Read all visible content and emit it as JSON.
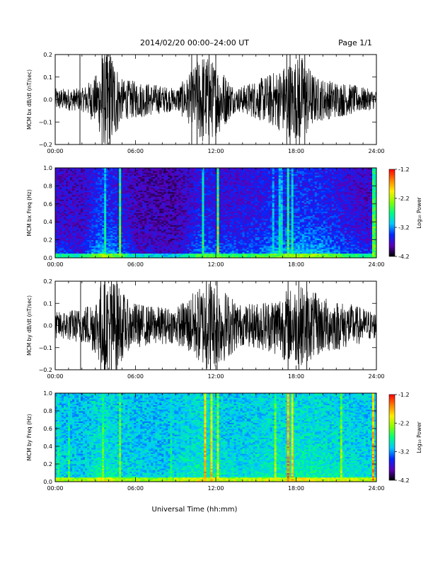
{
  "header": {
    "title": "2014/02/20  00:00–24:00 UT",
    "page": "Page 1/1"
  },
  "xlabel": "Universal Time (hh:mm)",
  "chart_data": [
    {
      "type": "line",
      "ylabel": "MCM bx dB/dt (nT/sec)",
      "xlim": [
        0,
        24
      ],
      "ylim": [
        -0.2,
        0.2
      ],
      "x_tick_labels": [
        "00:00",
        "06:00",
        "12:00",
        "18:00",
        "24:00"
      ],
      "y_tick_labels": [
        "0.2",
        "0.1",
        "0.0",
        "−0.1",
        "−0.2"
      ],
      "series_color": "#000000",
      "amplitude_envelope": [
        {
          "x": 0,
          "amp": 0.05
        },
        {
          "x": 2,
          "amp": 0.05
        },
        {
          "x": 3.2,
          "amp": 0.12
        },
        {
          "x": 3.5,
          "amp": 0.21
        },
        {
          "x": 4.3,
          "amp": 0.21
        },
        {
          "x": 5,
          "amp": 0.09
        },
        {
          "x": 6.5,
          "amp": 0.08
        },
        {
          "x": 9,
          "amp": 0.05
        },
        {
          "x": 10,
          "amp": 0.11
        },
        {
          "x": 11,
          "amp": 0.21
        },
        {
          "x": 12.3,
          "amp": 0.15
        },
        {
          "x": 13.5,
          "amp": 0.05
        },
        {
          "x": 15.5,
          "amp": 0.1
        },
        {
          "x": 16.5,
          "amp": 0.13
        },
        {
          "x": 17.5,
          "amp": 0.17
        },
        {
          "x": 18.4,
          "amp": 0.2
        },
        {
          "x": 19.5,
          "amp": 0.1
        },
        {
          "x": 22,
          "amp": 0.07
        },
        {
          "x": 24,
          "amp": 0.04
        }
      ],
      "full_scale_spikes": [
        1.85,
        3.5,
        3.9,
        4.1,
        10.2,
        10.6,
        11.5,
        12,
        17.3,
        17.55,
        18.25,
        18.65
      ]
    },
    {
      "type": "heatmap",
      "ylabel": "MCM bx Freq (Hz)",
      "xlim": [
        0,
        24
      ],
      "ylim": [
        0,
        1.0
      ],
      "x_tick_labels": [
        "00:00",
        "06:00",
        "12:00",
        "18:00",
        "24:00"
      ],
      "y_tick_labels": [
        "1.0",
        "0.8",
        "0.6",
        "0.4",
        "0.2",
        "0.0"
      ],
      "colorbar": {
        "label": "Log₁₀ Power",
        "range": [
          -4.2,
          -1.2
        ],
        "tick_labels": [
          "-1.2",
          "-2.2",
          "-3.2",
          "-4.2"
        ],
        "colors": [
          "#000000",
          "#5b00b8",
          "#0028ff",
          "#00c8ff",
          "#00ff80",
          "#88ff00",
          "#ffee00",
          "#ff8000",
          "#ff0000"
        ]
      },
      "background_log_power": -4.0,
      "activity": [
        {
          "x": 0,
          "lvl": -3.4
        },
        {
          "x": 2,
          "lvl": -3.5
        },
        {
          "x": 3.5,
          "lvl": -2.9
        },
        {
          "x": 4.5,
          "lvl": -3.1
        },
        {
          "x": 6,
          "lvl": -3.6
        },
        {
          "x": 9,
          "lvl": -3.7
        },
        {
          "x": 11,
          "lvl": -3.1
        },
        {
          "x": 12.5,
          "lvl": -3.3
        },
        {
          "x": 15,
          "lvl": -3.2
        },
        {
          "x": 17,
          "lvl": -3.0
        },
        {
          "x": 18.5,
          "lvl": -2.9
        },
        {
          "x": 20,
          "lvl": -3.0
        },
        {
          "x": 22,
          "lvl": -3.3
        },
        {
          "x": 24,
          "lvl": -3.5
        }
      ],
      "stripes": [
        {
          "x": 3.8,
          "log_power": -2.7
        },
        {
          "x": 4.9,
          "log_power": -2.4
        },
        {
          "x": 11.1,
          "log_power": -2.6
        },
        {
          "x": 12.15,
          "log_power": -2.3
        },
        {
          "x": 16.35,
          "log_power": -2.9
        },
        {
          "x": 16.85,
          "log_power": -2.8
        },
        {
          "x": 17.35,
          "log_power": -2.5
        },
        {
          "x": 17.7,
          "log_power": -2.7
        },
        {
          "x": 23.85,
          "log_power": -2.4
        }
      ]
    },
    {
      "type": "line",
      "ylabel": "MCM by dB/dt (nT/sec)",
      "xlim": [
        0,
        24
      ],
      "ylim": [
        -0.2,
        0.2
      ],
      "x_tick_labels": [
        "00:00",
        "06:00",
        "12:00",
        "18:00",
        "24:00"
      ],
      "y_tick_labels": [
        "0.2",
        "0.1",
        "0.0",
        "−0.1",
        "−0.2"
      ],
      "series_color": "#000000",
      "amplitude_envelope": [
        {
          "x": 0,
          "amp": 0.06
        },
        {
          "x": 2,
          "amp": 0.08
        },
        {
          "x": 3,
          "amp": 0.13
        },
        {
          "x": 3.5,
          "amp": 0.21
        },
        {
          "x": 4.5,
          "amp": 0.21
        },
        {
          "x": 5.5,
          "amp": 0.11
        },
        {
          "x": 7,
          "amp": 0.09
        },
        {
          "x": 9,
          "amp": 0.08
        },
        {
          "x": 10.5,
          "amp": 0.16
        },
        {
          "x": 11.5,
          "amp": 0.21
        },
        {
          "x": 12.5,
          "amp": 0.17
        },
        {
          "x": 14,
          "amp": 0.09
        },
        {
          "x": 16,
          "amp": 0.12
        },
        {
          "x": 17.5,
          "amp": 0.17
        },
        {
          "x": 18.5,
          "amp": 0.18
        },
        {
          "x": 20,
          "amp": 0.13
        },
        {
          "x": 22,
          "amp": 0.1
        },
        {
          "x": 24,
          "amp": 0.06
        }
      ],
      "full_scale_spikes": [
        1.9,
        3.4,
        3.7,
        4.2,
        4.6,
        11.3,
        11.6,
        12.1,
        17.4,
        18.2,
        18.8
      ]
    },
    {
      "type": "heatmap",
      "ylabel": "MCM by Freq (Hz)",
      "xlim": [
        0,
        24
      ],
      "ylim": [
        0,
        1.0
      ],
      "x_tick_labels": [
        "00:00",
        "06:00",
        "12:00",
        "18:00",
        "24:00"
      ],
      "y_tick_labels": [
        "1.0",
        "0.8",
        "0.6",
        "0.4",
        "0.2",
        "0.0"
      ],
      "colorbar": {
        "label": "Log₁₀ Power",
        "range": [
          -4.2,
          -1.2
        ],
        "tick_labels": [
          "-1.2",
          "-2.2",
          "-3.2",
          "-4.2"
        ],
        "colors": [
          "#000000",
          "#5b00b8",
          "#0028ff",
          "#00c8ff",
          "#00ff80",
          "#88ff00",
          "#ffee00",
          "#ff8000",
          "#ff0000"
        ]
      },
      "background_log_power": -3.15,
      "activity": [
        {
          "x": 0,
          "lvl": -2.9
        },
        {
          "x": 2,
          "lvl": -3.0
        },
        {
          "x": 3.5,
          "lvl": -2.7
        },
        {
          "x": 5,
          "lvl": -2.9
        },
        {
          "x": 8,
          "lvl": -3.0
        },
        {
          "x": 11,
          "lvl": -2.7
        },
        {
          "x": 13,
          "lvl": -2.9
        },
        {
          "x": 16,
          "lvl": -2.8
        },
        {
          "x": 18.5,
          "lvl": -2.7
        },
        {
          "x": 21,
          "lvl": -2.8
        },
        {
          "x": 24,
          "lvl": -2.9
        }
      ],
      "stripes": [
        {
          "x": 0.25,
          "log_power": -2.6
        },
        {
          "x": 1.05,
          "log_power": -2.6
        },
        {
          "x": 3.6,
          "log_power": -2.4
        },
        {
          "x": 4.9,
          "log_power": -2.3
        },
        {
          "x": 8.7,
          "log_power": -2.6
        },
        {
          "x": 11.15,
          "log_power": -1.6
        },
        {
          "x": 11.75,
          "log_power": -1.8
        },
        {
          "x": 12.2,
          "log_power": -2.1
        },
        {
          "x": 16.4,
          "log_power": -2.2
        },
        {
          "x": 17.4,
          "log_power": -1.5
        },
        {
          "x": 17.75,
          "log_power": -1.8
        },
        {
          "x": 21.4,
          "log_power": -2.2
        },
        {
          "x": 23.8,
          "log_power": -1.6
        }
      ]
    }
  ]
}
